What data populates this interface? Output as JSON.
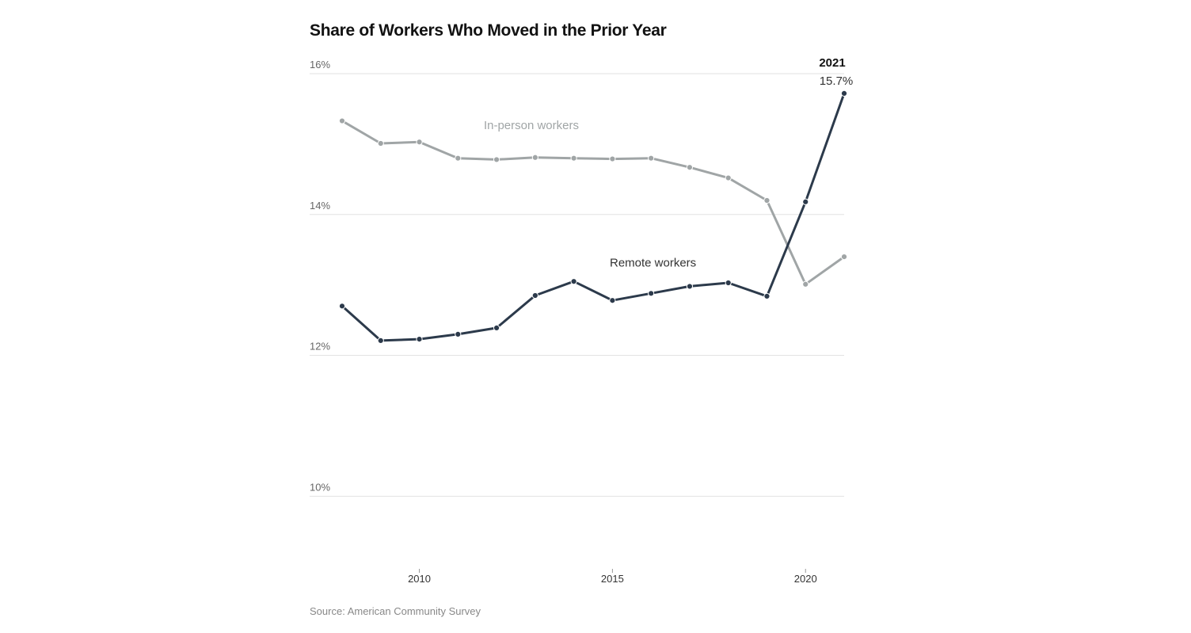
{
  "chart_data": {
    "type": "line",
    "title": "Share of Workers Who Moved in the Prior Year",
    "xlabel": "",
    "ylabel": "",
    "x": [
      2008,
      2009,
      2010,
      2011,
      2012,
      2013,
      2014,
      2015,
      2016,
      2017,
      2018,
      2019,
      2020,
      2021
    ],
    "xlim": [
      2007.9,
      2021.05
    ],
    "ylim": [
      8.8,
      16.0
    ],
    "x_ticks": [
      2010,
      2015,
      2020
    ],
    "x_tick_labels": [
      "2010",
      "2015",
      "2020"
    ],
    "y_ticks": [
      10,
      12,
      14,
      16
    ],
    "y_tick_labels": [
      "10%",
      "12%",
      "14%",
      "16%"
    ],
    "grid": true,
    "legend": "inline labels",
    "series": [
      {
        "name": "In-person workers",
        "color": "#a0a5a6",
        "values": [
          15.33,
          15.01,
          15.03,
          14.8,
          14.78,
          14.81,
          14.8,
          14.79,
          14.8,
          14.67,
          14.52,
          14.2,
          13.01,
          13.4
        ]
      },
      {
        "name": "Remote workers",
        "color": "#2c3a4b",
        "values": [
          12.7,
          12.21,
          12.23,
          12.3,
          12.39,
          12.85,
          13.05,
          12.78,
          12.88,
          12.98,
          13.03,
          12.84,
          14.18,
          15.72
        ]
      }
    ],
    "annotations": [
      {
        "year_label": "2021",
        "value_label": "15.7%"
      }
    ],
    "source": "Source: American Community Survey"
  }
}
